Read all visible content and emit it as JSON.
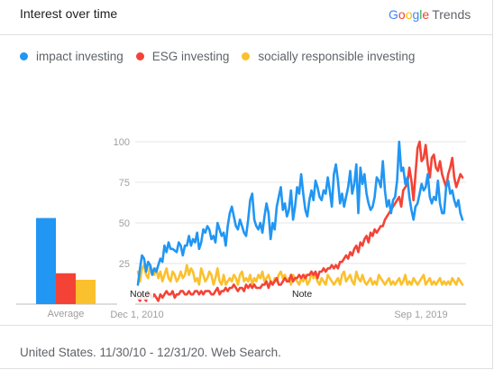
{
  "header": {
    "title": "Interest over time",
    "brand_google": "Google",
    "brand_trends": "Trends"
  },
  "footer": {
    "text": "United States. 11/30/10 - 12/31/20. Web Search."
  },
  "colors": {
    "impact": "#2196f3",
    "esg": "#f44336",
    "socially": "#fbc02d",
    "grid": "#e6e6e6",
    "axis_text": "#9e9e9e"
  },
  "chart_data": {
    "type": "line",
    "title": "Interest over time",
    "ylim": [
      0,
      100
    ],
    "yticks": [
      25,
      50,
      75,
      100
    ],
    "xtick_labels": [
      "Dec 1, 2010",
      "Sep 1, 2019"
    ],
    "xlim": [
      "2010-11-30",
      "2020-12-31"
    ],
    "grid": true,
    "legend_position": "top-left",
    "notes": [
      "Note",
      "Note"
    ],
    "average": {
      "label": "Average",
      "values": {
        "impact investing": 53,
        "ESG investing": 19,
        "socially responsible investing": 15
      }
    },
    "series": [
      {
        "name": "impact investing",
        "color": "#2196f3",
        "values": [
          12,
          22,
          30,
          28,
          20,
          26,
          24,
          18,
          22,
          20,
          24,
          28,
          26,
          36,
          32,
          38,
          34,
          34,
          33,
          32,
          38,
          36,
          30,
          36,
          36,
          42,
          36,
          40,
          38,
          44,
          34,
          38,
          46,
          44,
          48,
          46,
          40,
          42,
          38,
          50,
          46,
          42,
          44,
          36,
          48,
          56,
          60,
          54,
          48,
          46,
          52,
          48,
          44,
          42,
          52,
          64,
          68,
          52,
          48,
          46,
          50,
          44,
          54,
          62,
          56,
          40,
          50,
          46,
          60,
          66,
          72,
          58,
          62,
          54,
          58,
          70,
          52,
          60,
          72,
          68,
          80,
          68,
          58,
          54,
          64,
          70,
          64,
          76,
          72,
          66,
          64,
          70,
          68,
          78,
          70,
          60,
          80,
          86,
          76,
          62,
          68,
          60,
          66,
          72,
          82,
          68,
          74,
          86,
          56,
          84,
          74,
          80,
          68,
          62,
          58,
          60,
          66,
          78,
          76,
          72,
          88,
          70,
          60,
          64,
          56,
          64,
          66,
          76,
          100,
          82,
          84,
          74,
          78,
          66,
          58,
          52,
          60,
          62,
          68,
          74,
          70,
          72,
          80,
          66,
          62,
          66,
          64,
          76,
          62,
          56,
          56,
          72,
          76,
          68,
          70,
          64,
          60,
          64,
          56,
          52
        ]
      },
      {
        "name": "ESG investing",
        "color": "#f44336",
        "values": [
          4,
          2,
          6,
          4,
          2,
          8,
          6,
          4,
          6,
          4,
          2,
          6,
          4,
          6,
          8,
          6,
          6,
          8,
          4,
          6,
          6,
          8,
          8,
          6,
          6,
          8,
          6,
          6,
          8,
          8,
          6,
          8,
          6,
          8,
          8,
          8,
          6,
          6,
          8,
          10,
          6,
          8,
          8,
          10,
          8,
          10,
          10,
          12,
          10,
          8,
          10,
          10,
          8,
          12,
          10,
          12,
          10,
          12,
          10,
          10,
          10,
          12,
          12,
          14,
          10,
          14,
          12,
          14,
          16,
          12,
          12,
          14,
          16,
          14,
          14,
          18,
          14,
          16,
          16,
          18,
          16,
          18,
          16,
          18,
          18,
          20,
          18,
          20,
          16,
          20,
          20,
          22,
          20,
          22,
          22,
          24,
          22,
          24,
          22,
          26,
          26,
          28,
          30,
          28,
          32,
          30,
          34,
          36,
          32,
          38,
          36,
          40,
          42,
          38,
          44,
          42,
          46,
          44,
          46,
          48,
          48,
          52,
          54,
          56,
          58,
          60,
          62,
          64,
          66,
          60,
          70,
          72,
          74,
          84,
          76,
          64,
          80,
          96,
          100,
          88,
          90,
          98,
          86,
          78,
          90,
          92,
          84,
          82,
          88,
          80,
          76,
          72,
          80,
          84,
          90,
          78,
          72,
          76,
          80,
          78
        ]
      },
      {
        "name": "socially responsible investing",
        "color": "#fbc02d",
        "values": [
          20,
          14,
          22,
          24,
          18,
          16,
          24,
          20,
          18,
          22,
          16,
          20,
          14,
          18,
          22,
          16,
          14,
          20,
          18,
          14,
          16,
          20,
          16,
          18,
          24,
          18,
          22,
          20,
          14,
          16,
          12,
          22,
          18,
          14,
          16,
          20,
          18,
          12,
          16,
          22,
          14,
          12,
          18,
          12,
          14,
          16,
          14,
          18,
          16,
          12,
          18,
          20,
          14,
          16,
          14,
          18,
          12,
          16,
          14,
          18,
          16,
          20,
          14,
          16,
          18,
          14,
          12,
          16,
          14,
          18,
          20,
          16,
          18,
          14,
          16,
          12,
          18,
          16,
          14,
          12,
          16,
          14,
          18,
          12,
          14,
          20,
          16,
          18,
          14,
          12,
          16,
          14,
          12,
          18,
          16,
          14,
          12,
          14,
          16,
          12,
          18,
          20,
          14,
          16,
          18,
          14,
          12,
          20,
          16,
          14,
          18,
          14,
          12,
          14,
          16,
          12,
          14,
          12,
          18,
          16,
          14,
          12,
          14,
          16,
          12,
          14,
          12,
          14,
          16,
          12,
          14,
          18,
          12,
          14,
          12,
          16,
          14,
          12,
          14,
          16,
          18,
          12,
          14,
          16,
          12,
          14,
          12,
          14,
          16,
          12,
          14,
          12,
          14,
          12,
          16,
          14,
          12,
          16,
          14,
          12
        ]
      }
    ]
  }
}
